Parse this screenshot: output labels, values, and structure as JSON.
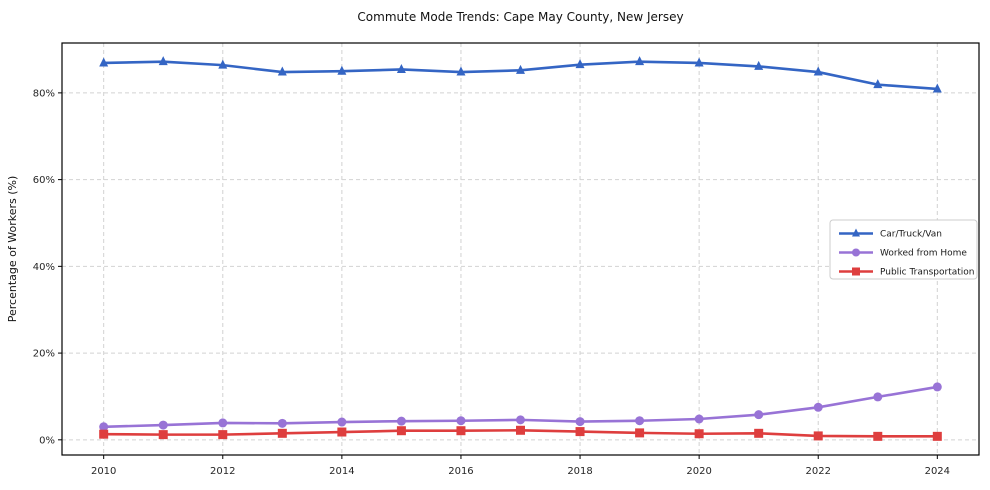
{
  "chart_data": {
    "type": "line",
    "title": "Commute Mode Trends: Cape May County, New Jersey",
    "xlabel": "",
    "ylabel": "Percentage of Workers (%)",
    "x": [
      2010,
      2011,
      2012,
      2013,
      2014,
      2015,
      2016,
      2017,
      2018,
      2019,
      2020,
      2021,
      2022,
      2023,
      2024
    ],
    "series": [
      {
        "name": "Car/Truck/Van",
        "marker": "triangle",
        "color": "#3465c4",
        "values": [
          86.9,
          87.2,
          86.4,
          84.8,
          85.0,
          85.4,
          84.8,
          85.2,
          86.5,
          87.2,
          86.9,
          86.1,
          84.8,
          81.9,
          80.9
        ]
      },
      {
        "name": "Worked from Home",
        "marker": "circle",
        "color": "#9873d6",
        "values": [
          3.0,
          3.4,
          3.9,
          3.8,
          4.1,
          4.3,
          4.4,
          4.6,
          4.2,
          4.4,
          4.8,
          5.8,
          7.5,
          9.9,
          12.2
        ]
      },
      {
        "name": "Public Transportation",
        "marker": "square",
        "color": "#de3e3e",
        "values": [
          1.3,
          1.2,
          1.2,
          1.5,
          1.8,
          2.1,
          2.1,
          2.2,
          1.9,
          1.6,
          1.4,
          1.5,
          0.9,
          0.8,
          0.8
        ]
      }
    ],
    "xlim": [
      2009.3,
      2024.7
    ],
    "ylim": [
      -3.5,
      91.5
    ],
    "xticks": [
      2010,
      2012,
      2014,
      2016,
      2018,
      2020,
      2022,
      2024
    ],
    "xticklabels": [
      "2010",
      "2012",
      "2014",
      "2016",
      "2018",
      "2020",
      "2022",
      "2024"
    ],
    "yticks": [
      0,
      20,
      40,
      60,
      80
    ],
    "yticklabels": [
      "0%",
      "20%",
      "40%",
      "60%",
      "80%"
    ],
    "grid": true,
    "grid_style": "dashed",
    "grid_color": "#d2d2d2",
    "axis_color": "#000000",
    "tick_label_color": "#262626",
    "legend_position": "center-right",
    "legend_border_color": "#cccccc",
    "legend_background": "#ffffff"
  }
}
